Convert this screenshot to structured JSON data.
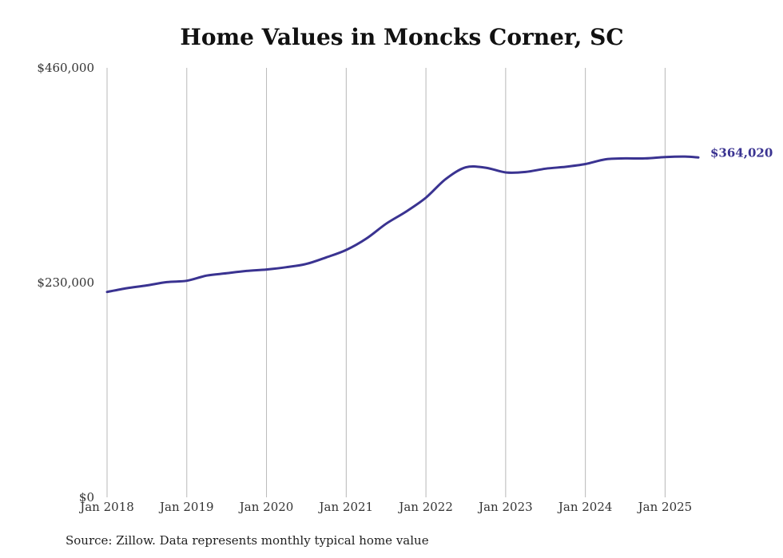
{
  "chart_data": {
    "type": "line",
    "title": "Home Values in Moncks Corner, SC",
    "xlabel": "",
    "ylabel": "",
    "ylim": [
      0,
      460000
    ],
    "yticks": [
      {
        "value": 0,
        "label": "$0"
      },
      {
        "value": 230000,
        "label": "$230,000"
      },
      {
        "value": 460000,
        "label": "$460,000"
      }
    ],
    "xlim": [
      "2018-01",
      "2025-06"
    ],
    "xticks": [
      {
        "date": "2018-01",
        "label": "Jan 2018"
      },
      {
        "date": "2019-01",
        "label": "Jan 2019"
      },
      {
        "date": "2020-01",
        "label": "Jan 2020"
      },
      {
        "date": "2021-01",
        "label": "Jan 2021"
      },
      {
        "date": "2022-01",
        "label": "Jan 2022"
      },
      {
        "date": "2023-01",
        "label": "Jan 2023"
      },
      {
        "date": "2024-01",
        "label": "Jan 2024"
      },
      {
        "date": "2025-01",
        "label": "Jan 2025"
      }
    ],
    "grid": "vertical",
    "series": [
      {
        "color": "#3a3391",
        "points": [
          {
            "x": "2018-01",
            "y": 220000
          },
          {
            "x": "2018-04",
            "y": 224000
          },
          {
            "x": "2018-07",
            "y": 227000
          },
          {
            "x": "2018-10",
            "y": 230500
          },
          {
            "x": "2019-01",
            "y": 232000
          },
          {
            "x": "2019-04",
            "y": 237500
          },
          {
            "x": "2019-07",
            "y": 240000
          },
          {
            "x": "2019-10",
            "y": 242500
          },
          {
            "x": "2020-01",
            "y": 244000
          },
          {
            "x": "2020-04",
            "y": 246500
          },
          {
            "x": "2020-07",
            "y": 250000
          },
          {
            "x": "2020-10",
            "y": 257000
          },
          {
            "x": "2021-01",
            "y": 265000
          },
          {
            "x": "2021-04",
            "y": 277000
          },
          {
            "x": "2021-07",
            "y": 293000
          },
          {
            "x": "2021-10",
            "y": 306000
          },
          {
            "x": "2022-01",
            "y": 321000
          },
          {
            "x": "2022-04",
            "y": 341000
          },
          {
            "x": "2022-07",
            "y": 353500
          },
          {
            "x": "2022-10",
            "y": 353000
          },
          {
            "x": "2023-01",
            "y": 348000
          },
          {
            "x": "2023-04",
            "y": 348500
          },
          {
            "x": "2023-07",
            "y": 352000
          },
          {
            "x": "2023-10",
            "y": 354000
          },
          {
            "x": "2024-01",
            "y": 357000
          },
          {
            "x": "2024-04",
            "y": 362000
          },
          {
            "x": "2024-07",
            "y": 363000
          },
          {
            "x": "2024-10",
            "y": 363000
          },
          {
            "x": "2025-01",
            "y": 364500
          },
          {
            "x": "2025-04",
            "y": 365000
          },
          {
            "x": "2025-06",
            "y": 364020
          }
        ]
      }
    ],
    "end_label": "$364,020"
  },
  "source_note": "Source: Zillow. Data represents monthly typical home value"
}
